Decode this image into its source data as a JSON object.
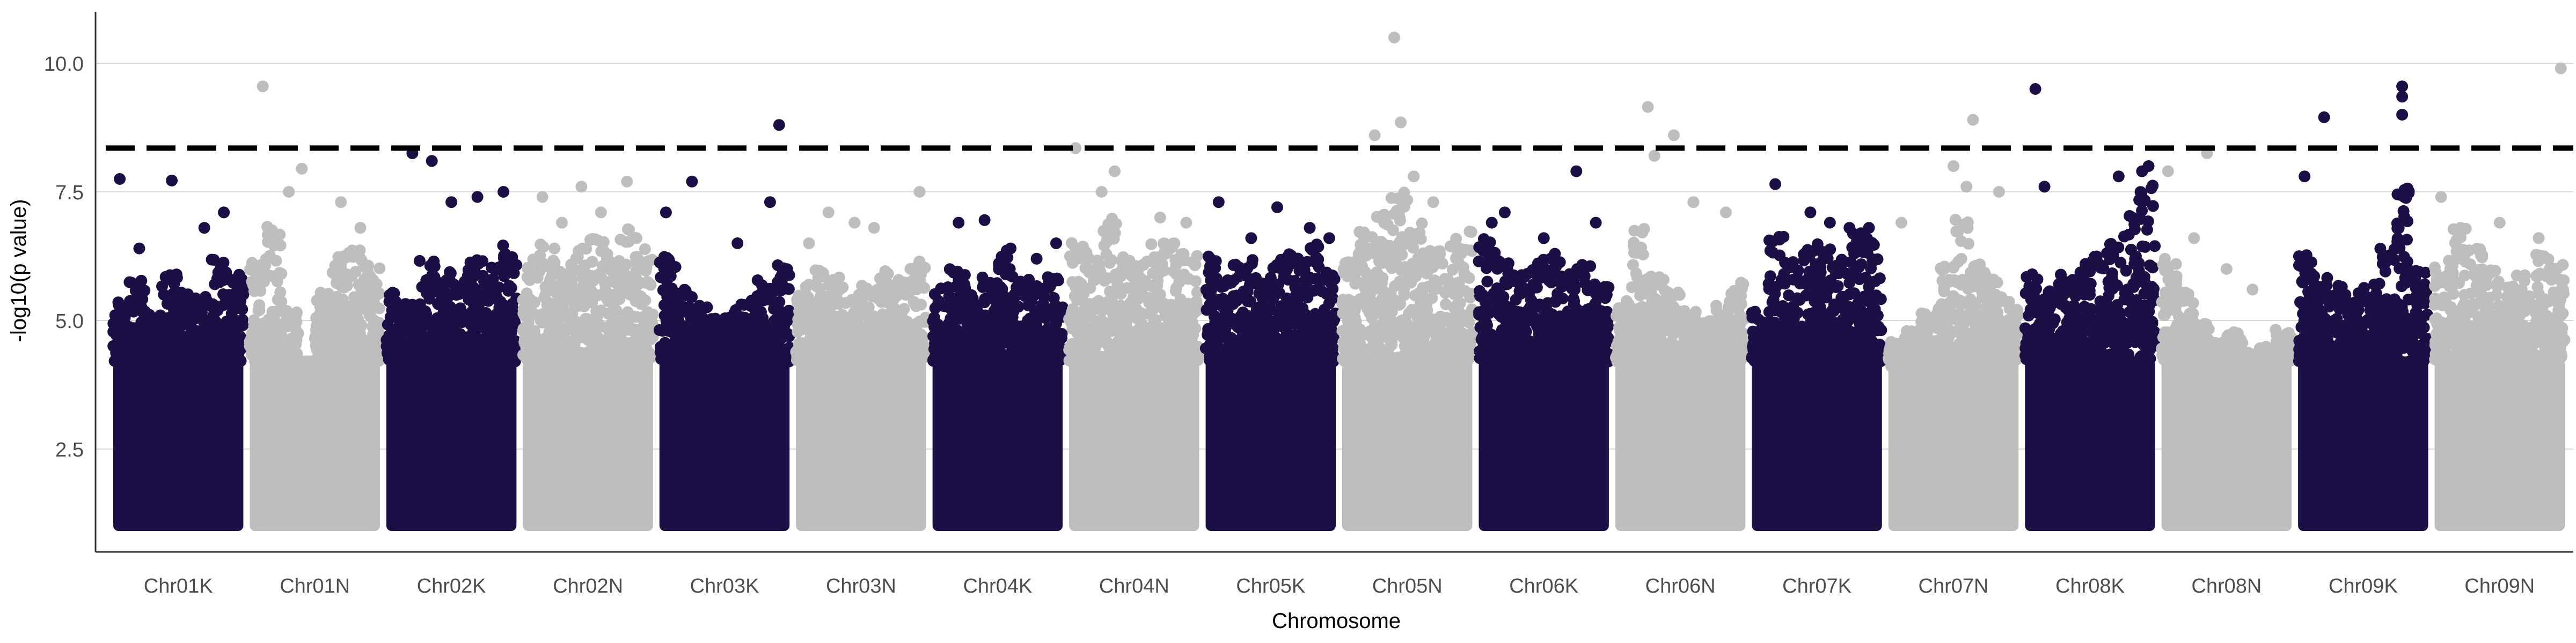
{
  "chart_data": {
    "type": "scatter",
    "title": "",
    "xlabel": "Chromosome",
    "ylabel": "-log10(p value)",
    "ylim": [
      1.0,
      11.0
    ],
    "y_ticks": [
      2.5,
      5.0,
      7.5,
      10.0
    ],
    "y_tick_labels": [
      "2.5",
      "5.0",
      "7.5",
      "10.0"
    ],
    "grid": "horizontal major lines only",
    "legend": "none",
    "threshold": 8.35,
    "colors": {
      "odd_chromosome": "#1c0f45",
      "even_chromosome": "#bebebe",
      "threshold_line": "#000000",
      "gridline": "#d9d9d9",
      "axis_line": "#333333"
    },
    "categories": [
      "Chr01K",
      "Chr01N",
      "Chr02K",
      "Chr02N",
      "Chr03K",
      "Chr03N",
      "Chr04K",
      "Chr04N",
      "Chr05K",
      "Chr05N",
      "Chr06K",
      "Chr06N",
      "Chr07K",
      "Chr07N",
      "Chr08K",
      "Chr08N",
      "Chr09K",
      "Chr09N"
    ],
    "series": [
      {
        "category": "Chr01K",
        "dense_top": [
          5.4,
          5.8,
          5.2,
          5.9,
          5.6,
          5.5,
          6.2,
          5.9
        ],
        "max_points": [
          [
            0.05,
            7.75
          ],
          [
            0.45,
            7.72
          ],
          [
            0.85,
            7.1
          ],
          [
            0.7,
            6.8
          ],
          [
            0.2,
            6.4
          ]
        ]
      },
      {
        "category": "Chr01N",
        "dense_top": [
          6.4,
          6.9,
          5.2,
          4.2,
          5.6,
          6.3,
          6.7,
          6.1
        ],
        "max_points": [
          [
            0.1,
            9.55
          ],
          [
            0.4,
            7.95
          ],
          [
            0.3,
            7.5
          ],
          [
            0.7,
            7.3
          ],
          [
            0.85,
            6.8
          ]
        ]
      },
      {
        "category": "Chr02K",
        "dense_top": [
          5.6,
          5.4,
          6.2,
          6.0,
          5.8,
          6.3,
          6.1,
          6.5
        ],
        "max_points": [
          [
            0.2,
            8.25
          ],
          [
            0.35,
            8.1
          ],
          [
            0.5,
            7.3
          ],
          [
            0.7,
            7.4
          ],
          [
            0.9,
            7.5
          ]
        ]
      },
      {
        "category": "Chr02N",
        "dense_top": [
          6.2,
          6.5,
          6.1,
          6.4,
          6.6,
          6.3,
          6.8,
          6.4
        ],
        "max_points": [
          [
            0.45,
            7.6
          ],
          [
            0.15,
            7.4
          ],
          [
            0.8,
            7.7
          ],
          [
            0.6,
            7.1
          ],
          [
            0.3,
            6.9
          ]
        ]
      },
      {
        "category": "Chr03K",
        "dense_top": [
          6.5,
          5.7,
          5.3,
          5.1,
          5.2,
          5.4,
          5.8,
          6.1
        ],
        "max_points": [
          [
            0.92,
            8.8
          ],
          [
            0.25,
            7.7
          ],
          [
            0.05,
            7.1
          ],
          [
            0.85,
            7.3
          ],
          [
            0.6,
            6.5
          ]
        ]
      },
      {
        "category": "Chr03N",
        "dense_top": [
          5.8,
          6.1,
          5.9,
          5.6,
          5.7,
          6.0,
          5.9,
          6.2
        ],
        "max_points": [
          [
            0.95,
            7.5
          ],
          [
            0.25,
            7.1
          ],
          [
            0.45,
            6.9
          ],
          [
            0.6,
            6.8
          ],
          [
            0.1,
            6.5
          ]
        ]
      },
      {
        "category": "Chr04K",
        "dense_top": [
          5.7,
          6.1,
          5.6,
          5.9,
          6.4,
          5.8,
          5.7,
          6.0
        ],
        "max_points": [
          [
            0.4,
            6.95
          ],
          [
            0.2,
            6.9
          ],
          [
            0.6,
            6.4
          ],
          [
            0.8,
            6.2
          ],
          [
            0.95,
            6.5
          ]
        ]
      },
      {
        "category": "Chr04N",
        "dense_top": [
          6.6,
          6.4,
          7.0,
          6.3,
          6.2,
          6.5,
          6.6,
          6.3
        ],
        "max_points": [
          [
            0.05,
            8.35
          ],
          [
            0.35,
            7.9
          ],
          [
            0.25,
            7.5
          ],
          [
            0.7,
            7.0
          ],
          [
            0.9,
            6.9
          ]
        ]
      },
      {
        "category": "Chr05K",
        "dense_top": [
          6.4,
          6.1,
          6.3,
          5.9,
          6.2,
          6.4,
          6.5,
          6.0
        ],
        "max_points": [
          [
            0.1,
            7.3
          ],
          [
            0.55,
            7.2
          ],
          [
            0.8,
            6.8
          ],
          [
            0.35,
            6.6
          ],
          [
            0.95,
            6.6
          ]
        ]
      },
      {
        "category": "Chr05N",
        "dense_top": [
          6.3,
          6.8,
          7.2,
          7.5,
          6.9,
          6.4,
          6.6,
          6.8
        ],
        "max_points": [
          [
            0.4,
            10.5
          ],
          [
            0.45,
            8.85
          ],
          [
            0.25,
            8.6
          ],
          [
            0.55,
            7.8
          ],
          [
            0.7,
            7.3
          ]
        ]
      },
      {
        "category": "Chr06K",
        "dense_top": [
          6.6,
          6.2,
          5.9,
          6.2,
          6.3,
          6.0,
          6.1,
          5.8
        ],
        "max_points": [
          [
            0.75,
            7.9
          ],
          [
            0.2,
            7.1
          ],
          [
            0.1,
            6.9
          ],
          [
            0.5,
            6.6
          ],
          [
            0.9,
            6.9
          ]
        ]
      },
      {
        "category": "Chr06N",
        "dense_top": [
          5.4,
          6.8,
          5.9,
          5.6,
          5.2,
          5.0,
          5.3,
          5.8
        ],
        "max_points": [
          [
            0.25,
            9.15
          ],
          [
            0.45,
            8.6
          ],
          [
            0.3,
            8.2
          ],
          [
            0.6,
            7.3
          ],
          [
            0.85,
            7.1
          ]
        ]
      },
      {
        "category": "Chr07K",
        "dense_top": [
          5.2,
          6.7,
          6.2,
          6.5,
          6.6,
          6.4,
          6.8,
          6.6
        ],
        "max_points": [
          [
            0.18,
            7.65
          ],
          [
            0.45,
            7.1
          ],
          [
            0.6,
            6.9
          ],
          [
            0.75,
            6.8
          ],
          [
            0.9,
            6.8
          ]
        ]
      },
      {
        "category": "Chr07N",
        "dense_top": [
          4.6,
          4.8,
          5.2,
          6.1,
          7.0,
          6.2,
          5.8,
          5.4
        ],
        "max_points": [
          [
            0.65,
            8.9
          ],
          [
            0.5,
            8.0
          ],
          [
            0.6,
            7.6
          ],
          [
            0.85,
            7.5
          ],
          [
            0.1,
            6.9
          ]
        ]
      },
      {
        "category": "Chr08K",
        "dense_top": [
          6.0,
          5.7,
          5.9,
          6.1,
          6.3,
          6.5,
          7.1,
          7.7
        ],
        "max_points": [
          [
            0.08,
            9.5
          ],
          [
            0.15,
            7.6
          ],
          [
            0.72,
            7.8
          ],
          [
            0.9,
            7.9
          ],
          [
            0.95,
            8.0
          ]
        ]
      },
      {
        "category": "Chr08N",
        "dense_top": [
          6.2,
          5.6,
          5.0,
          4.6,
          4.8,
          4.4,
          4.5,
          4.9
        ],
        "max_points": [
          [
            0.35,
            8.25
          ],
          [
            0.05,
            7.9
          ],
          [
            0.25,
            6.6
          ],
          [
            0.5,
            6.0
          ],
          [
            0.7,
            5.6
          ]
        ]
      },
      {
        "category": "Chr09K",
        "dense_top": [
          6.3,
          5.9,
          5.7,
          5.6,
          5.8,
          6.4,
          7.8,
          6.0
        ],
        "max_points": [
          [
            0.8,
            9.55
          ],
          [
            0.8,
            9.35
          ],
          [
            0.8,
            9.0
          ],
          [
            0.2,
            8.95
          ],
          [
            0.05,
            7.8
          ]
        ]
      },
      {
        "category": "Chr09N",
        "dense_top": [
          6.2,
          6.8,
          6.4,
          6.0,
          5.7,
          5.9,
          6.3,
          6.1
        ],
        "max_points": [
          [
            0.97,
            9.9
          ],
          [
            0.05,
            7.4
          ],
          [
            0.5,
            6.9
          ],
          [
            0.2,
            6.8
          ],
          [
            0.8,
            6.6
          ]
        ]
      }
    ]
  }
}
